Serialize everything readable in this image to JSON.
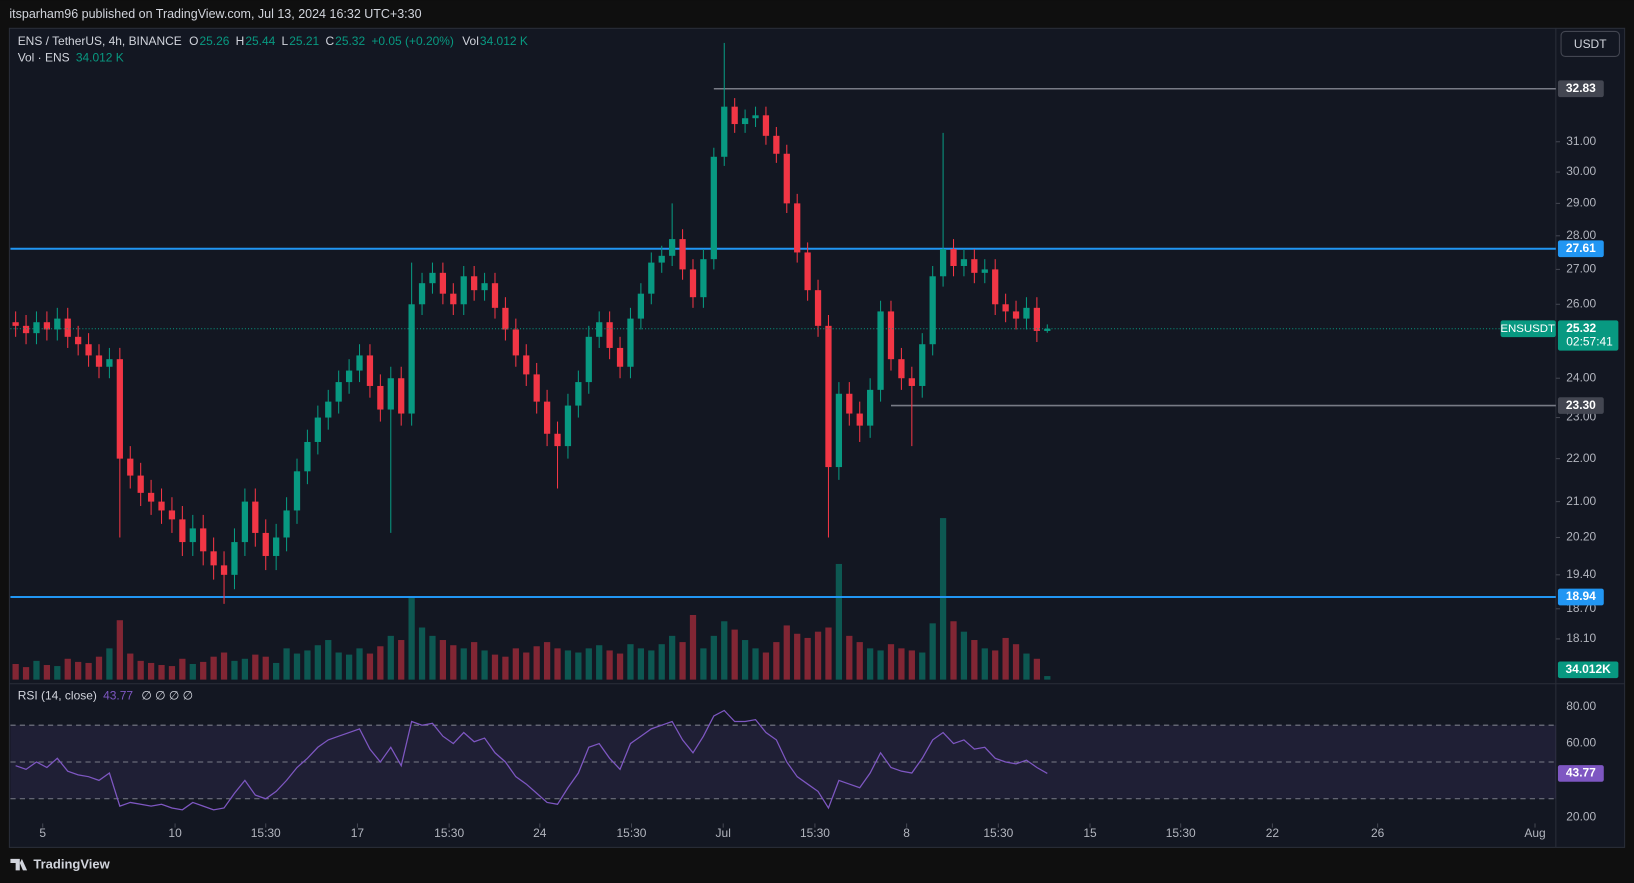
{
  "header": {
    "publisher": "itsparham96 published on TradingView.com, Jul 13, 2024 16:32 UTC+3:30",
    "brand": "TradingView"
  },
  "chart_data": {
    "type": "candlestick",
    "symbol_line": "ENS / TetherUS, 4h, BINANCE",
    "ohlc_labels": [
      "O",
      "H",
      "L",
      "C"
    ],
    "last_ohlc": [
      25.26,
      25.44,
      25.21,
      25.32
    ],
    "change": "+0.05 (+0.20%)",
    "vol_label": "Vol",
    "vol_value": "34.012 K",
    "currency": "USDT",
    "up_color": "#089981",
    "down_color": "#f23645",
    "open": [
      25.5,
      25.4,
      25.2,
      25.5,
      25.3,
      25.6,
      25.1,
      24.9,
      24.6,
      24.3,
      24.5,
      22.0,
      21.6,
      21.2,
      21.0,
      20.8,
      20.6,
      20.1,
      20.4,
      19.9,
      19.6,
      19.4,
      20.1,
      21.0,
      20.3,
      19.8,
      20.2,
      20.8,
      21.7,
      22.4,
      23.0,
      23.4,
      23.9,
      24.2,
      24.6,
      23.8,
      23.2,
      24.0,
      23.1,
      26.0,
      26.6,
      26.9,
      26.3,
      26.0,
      26.8,
      26.4,
      26.6,
      25.9,
      25.3,
      24.6,
      24.1,
      23.4,
      22.6,
      22.3,
      23.3,
      23.9,
      25.1,
      25.5,
      24.8,
      24.3,
      25.6,
      26.3,
      27.2,
      27.4,
      27.9,
      27.0,
      26.2,
      27.3,
      30.5,
      32.2,
      31.6,
      31.8,
      31.9,
      31.2,
      30.6,
      29.0,
      27.5,
      26.4,
      25.4,
      21.8,
      23.6,
      23.1,
      22.8,
      23.7,
      25.8,
      24.5,
      24.0,
      23.8,
      24.9,
      26.8,
      27.6,
      27.1,
      27.3,
      26.9,
      27.0,
      26.0,
      25.8,
      25.6,
      25.9,
      25.26
    ],
    "high": [
      25.8,
      25.7,
      25.8,
      25.8,
      25.9,
      25.9,
      25.4,
      25.2,
      24.9,
      24.8,
      24.8,
      22.3,
      21.9,
      21.5,
      21.3,
      21.1,
      20.9,
      20.7,
      20.7,
      20.2,
      19.9,
      20.4,
      21.3,
      21.3,
      20.6,
      20.5,
      21.1,
      22.0,
      22.7,
      23.3,
      23.7,
      24.2,
      24.5,
      24.9,
      24.9,
      24.1,
      24.3,
      24.3,
      27.2,
      26.9,
      27.2,
      27.2,
      26.6,
      27.1,
      27.1,
      26.9,
      26.9,
      26.2,
      25.6,
      24.9,
      24.4,
      23.7,
      22.9,
      23.6,
      24.2,
      25.4,
      25.8,
      25.8,
      25.1,
      25.9,
      26.6,
      27.5,
      27.7,
      29.0,
      28.2,
      27.3,
      27.6,
      30.8,
      34.5,
      32.5,
      32.1,
      32.2,
      32.2,
      31.5,
      30.9,
      29.3,
      27.8,
      26.7,
      25.7,
      23.9,
      23.9,
      23.4,
      24.0,
      26.1,
      26.1,
      24.8,
      24.3,
      25.2,
      27.1,
      31.3,
      27.9,
      27.6,
      27.6,
      27.3,
      27.3,
      26.3,
      26.1,
      26.2,
      26.2,
      25.44
    ],
    "low": [
      25.1,
      24.9,
      24.9,
      25.0,
      25.0,
      24.8,
      24.6,
      24.3,
      24.0,
      24.0,
      20.2,
      21.3,
      20.9,
      20.7,
      20.5,
      20.3,
      19.8,
      19.8,
      19.6,
      19.3,
      18.8,
      19.1,
      19.8,
      20.0,
      19.5,
      19.5,
      19.9,
      20.5,
      21.4,
      22.1,
      22.7,
      23.1,
      23.6,
      23.9,
      23.5,
      22.9,
      20.3,
      22.8,
      22.8,
      25.7,
      26.3,
      26.0,
      25.7,
      25.7,
      26.1,
      26.1,
      25.6,
      25.0,
      24.3,
      23.8,
      23.1,
      22.3,
      21.3,
      22.0,
      23.0,
      23.6,
      24.8,
      24.5,
      24.0,
      24.0,
      25.3,
      26.0,
      26.9,
      27.1,
      26.7,
      25.9,
      25.9,
      27.0,
      30.2,
      31.3,
      31.3,
      31.5,
      30.9,
      30.3,
      28.7,
      27.2,
      26.1,
      25.1,
      20.2,
      21.5,
      22.8,
      22.4,
      22.5,
      23.4,
      24.2,
      23.7,
      22.3,
      23.5,
      24.6,
      26.5,
      26.8,
      26.8,
      26.6,
      26.6,
      25.7,
      25.5,
      25.3,
      25.3,
      24.96,
      25.21
    ],
    "close": [
      25.4,
      25.2,
      25.5,
      25.3,
      25.6,
      25.1,
      24.9,
      24.6,
      24.3,
      24.5,
      22.0,
      21.6,
      21.2,
      21.0,
      20.8,
      20.6,
      20.1,
      20.4,
      19.9,
      19.6,
      19.4,
      20.1,
      21.0,
      20.3,
      19.8,
      20.2,
      20.8,
      21.7,
      22.4,
      23.0,
      23.4,
      23.9,
      24.2,
      24.6,
      23.8,
      23.2,
      24.0,
      23.1,
      26.0,
      26.6,
      26.9,
      26.3,
      26.0,
      26.8,
      26.4,
      26.6,
      25.9,
      25.3,
      24.6,
      24.1,
      23.4,
      22.6,
      22.3,
      23.3,
      23.9,
      25.1,
      25.5,
      24.8,
      24.3,
      25.6,
      26.3,
      27.2,
      27.4,
      27.9,
      27.0,
      26.2,
      27.3,
      30.5,
      32.2,
      31.6,
      31.8,
      31.9,
      31.2,
      30.6,
      29.0,
      27.5,
      26.4,
      25.4,
      21.8,
      23.6,
      23.1,
      22.8,
      23.7,
      25.8,
      24.5,
      24.0,
      23.8,
      24.9,
      26.8,
      27.6,
      27.1,
      27.3,
      26.9,
      27.0,
      26.0,
      25.8,
      25.6,
      25.9,
      25.26,
      25.32
    ],
    "ylim": [
      17.32,
      35.05
    ],
    "log": true,
    "yticks": [
      {
        "value": 31,
        "label": "31.00"
      },
      {
        "value": 30,
        "label": "30.00"
      },
      {
        "value": 29,
        "label": "29.00"
      },
      {
        "value": 28,
        "label": "28.00"
      },
      {
        "value": 27,
        "label": "27.00"
      },
      {
        "value": 26,
        "label": "26.00"
      },
      {
        "value": 24,
        "label": "24.00"
      },
      {
        "value": 23,
        "label": "23.00"
      },
      {
        "value": 22,
        "label": "22.00"
      },
      {
        "value": 21,
        "label": "21.00"
      },
      {
        "value": 20.2,
        "label": "20.20"
      },
      {
        "value": 19.4,
        "label": "19.40"
      },
      {
        "value": 18.7,
        "label": "18.70"
      },
      {
        "value": 18.1,
        "label": "18.10"
      }
    ],
    "levels": [
      {
        "value": 32.83,
        "color": "#787b86",
        "from": 67
      },
      {
        "value": 27.61,
        "color": "#2196f3"
      },
      {
        "value": 23.3,
        "label": "23.30",
        "color": "#787b86",
        "from": 84
      },
      {
        "value": 18.94,
        "color": "#2196f3"
      }
    ],
    "price_tag": {
      "symbol": "ENSUSDT",
      "countdown": "02:57:41"
    },
    "volume": {
      "name": "Vol · ENS",
      "value_label": "34.012 K",
      "tag_label": "34.012K",
      "ylim": [
        0,
        1600
      ],
      "values": [
        150,
        120,
        180,
        140,
        130,
        200,
        170,
        160,
        220,
        300,
        570,
        250,
        180,
        160,
        140,
        130,
        200,
        150,
        170,
        220,
        260,
        180,
        200,
        240,
        220,
        160,
        300,
        250,
        280,
        330,
        380,
        260,
        240,
        300,
        250,
        320,
        420,
        380,
        800,
        500,
        420,
        380,
        330,
        300,
        360,
        280,
        240,
        220,
        300,
        260,
        320,
        360,
        300,
        280,
        260,
        300,
        330,
        280,
        250,
        340,
        300,
        280,
        340,
        420,
        360,
        620,
        300,
        420,
        560,
        480,
        380,
        300,
        260,
        360,
        520,
        440,
        400,
        460,
        500,
        1110,
        420,
        360,
        300,
        280,
        340,
        300,
        280,
        260,
        540,
        1550,
        560,
        460,
        380,
        300,
        280,
        400,
        340,
        250,
        200,
        34.012
      ]
    },
    "rsi": {
      "name": "RSI (14, close)",
      "extras": "∅ ∅ ∅ ∅",
      "color": "#7e57c2",
      "ylim": [
        16.6,
        92.5
      ],
      "bands": [
        70,
        50,
        30
      ],
      "yticks": [
        {
          "value": 80,
          "label": "80.00"
        },
        {
          "value": 60,
          "label": "60.00"
        },
        {
          "value": 20,
          "label": "20.00"
        }
      ],
      "values": [
        48,
        46,
        50,
        47,
        52,
        45,
        43,
        42,
        40,
        44,
        26,
        28,
        27,
        26,
        27,
        25,
        24,
        28,
        26,
        24,
        25,
        33,
        40,
        32,
        30,
        34,
        40,
        47,
        52,
        58,
        62,
        64,
        66,
        68,
        57,
        50,
        58,
        48,
        72,
        70,
        71,
        64,
        60,
        66,
        61,
        63,
        55,
        50,
        42,
        38,
        33,
        28,
        27,
        36,
        44,
        58,
        60,
        52,
        46,
        60,
        64,
        68,
        70,
        72,
        62,
        55,
        64,
        75,
        78,
        72,
        72,
        73,
        66,
        62,
        50,
        42,
        38,
        34,
        25,
        40,
        38,
        36,
        44,
        55,
        47,
        45,
        44,
        52,
        62,
        66,
        60,
        62,
        57,
        58,
        52,
        50,
        49,
        51,
        47,
        43.77
      ]
    },
    "xlim": [
      -0.5,
      147.8
    ],
    "xticks": [
      {
        "value": 2.6,
        "label": "5"
      },
      {
        "value": 15.3,
        "label": "10"
      },
      {
        "value": 24,
        "label": "15:30"
      },
      {
        "value": 32.8,
        "label": "17"
      },
      {
        "value": 41.6,
        "label": "15:30"
      },
      {
        "value": 50.3,
        "label": "24"
      },
      {
        "value": 59.1,
        "label": "15:30"
      },
      {
        "value": 67.9,
        "label": "Jul"
      },
      {
        "value": 76.7,
        "label": "15:30"
      },
      {
        "value": 85.5,
        "label": "8"
      },
      {
        "value": 94.3,
        "label": "15:30"
      },
      {
        "value": 103.1,
        "label": "15"
      },
      {
        "value": 111.8,
        "label": "15:30"
      },
      {
        "value": 120.6,
        "label": "22"
      },
      {
        "value": 130.7,
        "label": "26"
      },
      {
        "value": 145.8,
        "label": "Aug"
      }
    ]
  }
}
